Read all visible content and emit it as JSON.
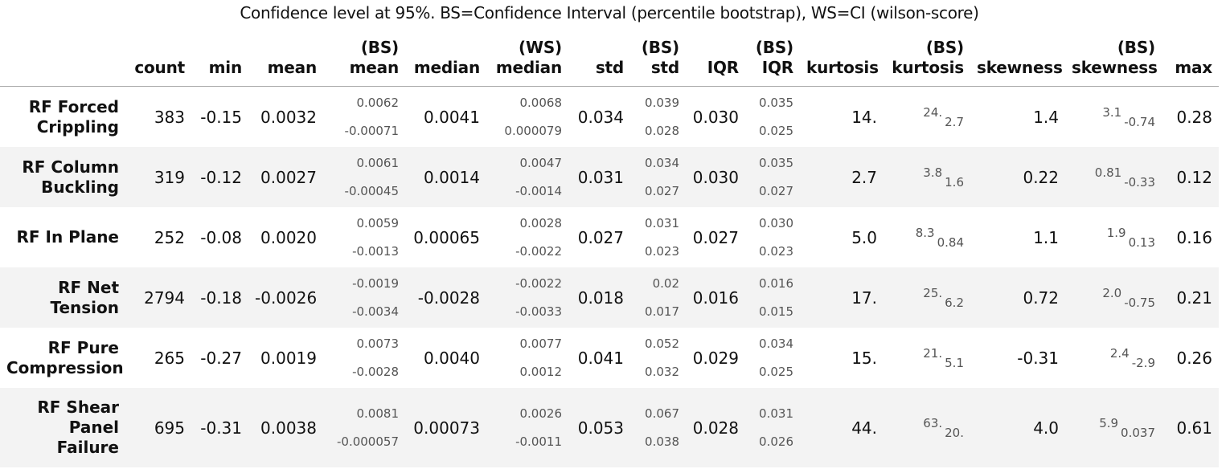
{
  "caption": "Confidence level at 95%. BS=Confidence Interval (percentile bootstrap), WS=CI (wilson-score)",
  "columns": [
    "count",
    "min",
    "mean",
    "(BS)\nmean",
    "median",
    "(WS)\nmedian",
    "std",
    "(BS)\nstd",
    "IQR",
    "(BS)\nIQR",
    "kurtosis",
    "(BS)\nkurtosis",
    "skewness",
    "(BS)\nskewness",
    "max"
  ],
  "rows": [
    {
      "label": "RF Forced\nCrippling",
      "count": "383",
      "min": "-0.15",
      "mean": "0.0032",
      "bs_mean": {
        "hi": "0.0062",
        "lo": "-0.00071"
      },
      "median": "0.0041",
      "ws_median": {
        "hi": "0.0068",
        "lo": "0.000079"
      },
      "std": "0.034",
      "bs_std": {
        "hi": "0.039",
        "lo": "0.028"
      },
      "iqr": "0.030",
      "bs_iqr": {
        "hi": "0.035",
        "lo": "0.025"
      },
      "kurtosis": "14.",
      "bs_kurtosis": {
        "hi": "24.",
        "lo": "2.7"
      },
      "skewness": "1.4",
      "bs_skewness": {
        "hi": "3.1",
        "lo": "-0.74"
      },
      "max": "0.28"
    },
    {
      "label": "RF Column\nBuckling",
      "count": "319",
      "min": "-0.12",
      "mean": "0.0027",
      "bs_mean": {
        "hi": "0.0061",
        "lo": "-0.00045"
      },
      "median": "0.0014",
      "ws_median": {
        "hi": "0.0047",
        "lo": "-0.0014"
      },
      "std": "0.031",
      "bs_std": {
        "hi": "0.034",
        "lo": "0.027"
      },
      "iqr": "0.030",
      "bs_iqr": {
        "hi": "0.035",
        "lo": "0.027"
      },
      "kurtosis": "2.7",
      "bs_kurtosis": {
        "hi": "3.8",
        "lo": "1.6"
      },
      "skewness": "0.22",
      "bs_skewness": {
        "hi": "0.81",
        "lo": "-0.33"
      },
      "max": "0.12"
    },
    {
      "label": "RF In Plane",
      "count": "252",
      "min": "-0.08",
      "mean": "0.0020",
      "bs_mean": {
        "hi": "0.0059",
        "lo": "-0.0013"
      },
      "median": "0.00065",
      "ws_median": {
        "hi": "0.0028",
        "lo": "-0.0022"
      },
      "std": "0.027",
      "bs_std": {
        "hi": "0.031",
        "lo": "0.023"
      },
      "iqr": "0.027",
      "bs_iqr": {
        "hi": "0.030",
        "lo": "0.023"
      },
      "kurtosis": "5.0",
      "bs_kurtosis": {
        "hi": "8.3",
        "lo": "0.84"
      },
      "skewness": "1.1",
      "bs_skewness": {
        "hi": "1.9",
        "lo": "0.13"
      },
      "max": "0.16"
    },
    {
      "label": "RF Net\nTension",
      "count": "2794",
      "min": "-0.18",
      "mean": "-0.0026",
      "bs_mean": {
        "hi": "-0.0019",
        "lo": "-0.0034"
      },
      "median": "-0.0028",
      "ws_median": {
        "hi": "-0.0022",
        "lo": "-0.0033"
      },
      "std": "0.018",
      "bs_std": {
        "hi": "0.02",
        "lo": "0.017"
      },
      "iqr": "0.016",
      "bs_iqr": {
        "hi": "0.016",
        "lo": "0.015"
      },
      "kurtosis": "17.",
      "bs_kurtosis": {
        "hi": "25.",
        "lo": "6.2"
      },
      "skewness": "0.72",
      "bs_skewness": {
        "hi": "2.0",
        "lo": "-0.75"
      },
      "max": "0.21"
    },
    {
      "label": "RF Pure\nCompression",
      "count": "265",
      "min": "-0.27",
      "mean": "0.0019",
      "bs_mean": {
        "hi": "0.0073",
        "lo": "-0.0028"
      },
      "median": "0.0040",
      "ws_median": {
        "hi": "0.0077",
        "lo": "0.0012"
      },
      "std": "0.041",
      "bs_std": {
        "hi": "0.052",
        "lo": "0.032"
      },
      "iqr": "0.029",
      "bs_iqr": {
        "hi": "0.034",
        "lo": "0.025"
      },
      "kurtosis": "15.",
      "bs_kurtosis": {
        "hi": "21.",
        "lo": "5.1"
      },
      "skewness": "-0.31",
      "bs_skewness": {
        "hi": "2.4",
        "lo": "-2.9"
      },
      "max": "0.26"
    },
    {
      "label": "RF Shear\nPanel\nFailure",
      "count": "695",
      "min": "-0.31",
      "mean": "0.0038",
      "bs_mean": {
        "hi": "0.0081",
        "lo": "-0.000057"
      },
      "median": "0.00073",
      "ws_median": {
        "hi": "0.0026",
        "lo": "-0.0011"
      },
      "std": "0.053",
      "bs_std": {
        "hi": "0.067",
        "lo": "0.038"
      },
      "iqr": "0.028",
      "bs_iqr": {
        "hi": "0.031",
        "lo": "0.026"
      },
      "kurtosis": "44.",
      "bs_kurtosis": {
        "hi": "63.",
        "lo": "20."
      },
      "skewness": "4.0",
      "bs_skewness": {
        "hi": "5.9",
        "lo": "0.037"
      },
      "max": "0.61"
    }
  ]
}
